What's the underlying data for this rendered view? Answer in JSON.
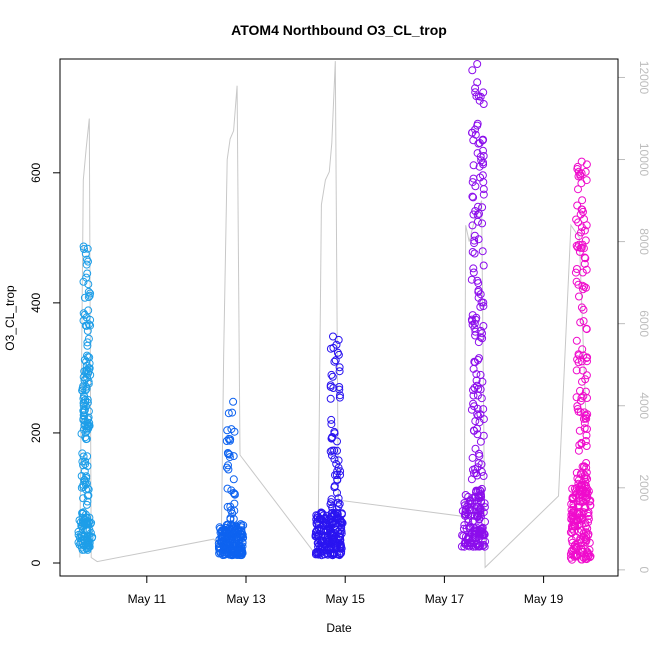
{
  "chart_data": {
    "type": "scatter",
    "title": "ATOM4 Northbound O3_CL_trop",
    "xlabel": "Date",
    "ylabel": "O3_CL_trop",
    "x_range_days": [
      9.25,
      20.5
    ],
    "x_ticks": [
      {
        "day": 11,
        "label": "May 11"
      },
      {
        "day": 13,
        "label": "May 13"
      },
      {
        "day": 15,
        "label": "May 15"
      },
      {
        "day": 17,
        "label": "May 17"
      },
      {
        "day": 19,
        "label": "May 19"
      }
    ],
    "ylim": [
      -20,
      775
    ],
    "y_ticks": [
      0,
      200,
      400,
      600
    ],
    "y2_label": "",
    "y2lim": [
      -150,
      12450
    ],
    "y2_ticks": [
      0,
      2000,
      4000,
      6000,
      8000,
      10000,
      12000
    ],
    "y2_color": "#bdbdbd",
    "grid": false,
    "legend": "none",
    "altitude_trace": [
      [
        9.65,
        300
      ],
      [
        9.72,
        9500
      ],
      [
        9.78,
        10300
      ],
      [
        9.84,
        11000
      ],
      [
        9.88,
        300
      ],
      [
        10.0,
        200
      ],
      [
        12.35,
        750
      ],
      [
        12.5,
        500
      ],
      [
        12.55,
        5300
      ],
      [
        12.62,
        10000
      ],
      [
        12.68,
        10500
      ],
      [
        12.75,
        10700
      ],
      [
        12.82,
        11800
      ],
      [
        12.88,
        2800
      ],
      [
        14.45,
        300
      ],
      [
        14.52,
        8900
      ],
      [
        14.6,
        9500
      ],
      [
        14.68,
        9700
      ],
      [
        14.73,
        10400
      ],
      [
        14.8,
        12400
      ],
      [
        14.86,
        1700
      ],
      [
        17.4,
        1300
      ],
      [
        17.43,
        8400
      ],
      [
        17.5,
        8000
      ],
      [
        17.56,
        8300
      ],
      [
        17.6,
        8500
      ],
      [
        17.75,
        9000
      ],
      [
        17.82,
        60
      ],
      [
        19.3,
        1800
      ],
      [
        19.55,
        8400
      ],
      [
        19.72,
        8100
      ],
      [
        19.85,
        3800
      ]
    ],
    "series": [
      {
        "color": "#1e9ee8",
        "clusters": [
          {
            "x": [
              9.62,
              9.9
            ],
            "y": [
              20,
              70
            ],
            "n": 70
          },
          {
            "x": [
              9.68,
              9.84
            ],
            "y": [
              60,
              300
            ],
            "n": 70
          },
          {
            "x": [
              9.72,
              9.86
            ],
            "y": [
              200,
              490
            ],
            "n": 70
          }
        ]
      },
      {
        "color": "#0e63f0",
        "clusters": [
          {
            "x": [
              12.45,
              12.95
            ],
            "y": [
              12,
              60
            ],
            "n": 180
          },
          {
            "x": [
              12.6,
              12.78
            ],
            "y": [
              40,
              260
            ],
            "n": 40
          }
        ]
      },
      {
        "color": "#2a14f0",
        "clusters": [
          {
            "x": [
              14.4,
              14.95
            ],
            "y": [
              12,
              80
            ],
            "n": 180
          },
          {
            "x": [
              14.7,
              14.9
            ],
            "y": [
              60,
              350
            ],
            "n": 70
          }
        ]
      },
      {
        "color": "#8c0eec",
        "clusters": [
          {
            "x": [
              17.35,
              17.82
            ],
            "y": [
              25,
              105
            ],
            "n": 130
          },
          {
            "x": [
              17.55,
              17.8
            ],
            "y": [
              100,
              770
            ],
            "n": 150
          }
        ]
      },
      {
        "color": "#ef0ccc",
        "clusters": [
          {
            "x": [
              19.55,
              19.95
            ],
            "y": [
              5,
              120
            ],
            "n": 150
          },
          {
            "x": [
              19.65,
              19.88
            ],
            "y": [
              100,
              620
            ],
            "n": 130
          }
        ]
      }
    ]
  }
}
